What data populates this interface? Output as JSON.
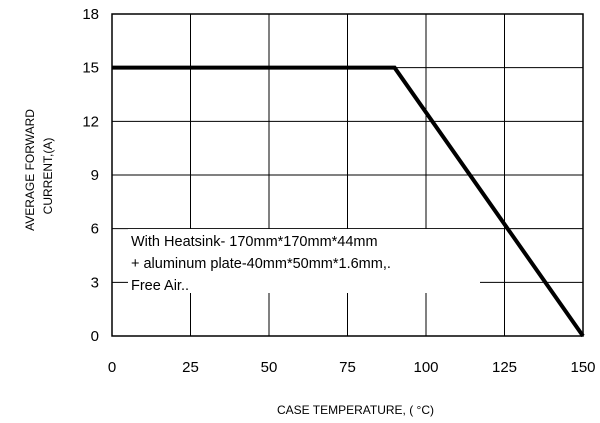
{
  "chart_data": {
    "type": "line",
    "xlabel": "CASE TEMPERATURE, ( °C)",
    "ylabel_lines": [
      "AVERAGE FORWARD",
      "CURRENT,(A)"
    ],
    "xlim": [
      0,
      150
    ],
    "ylim": [
      0,
      18
    ],
    "x_ticks": [
      0,
      25,
      50,
      75,
      100,
      125,
      150
    ],
    "y_ticks": [
      0,
      3,
      6,
      9,
      12,
      15,
      18
    ],
    "grid": true,
    "series": [
      {
        "x": [
          0,
          90,
          150
        ],
        "y": [
          15,
          15,
          0
        ]
      }
    ],
    "annotation_lines": [
      "With Heatsink- 170mm*170mm*44mm",
      "+ aluminum plate-40mm*50mm*1.6mm,.",
      "Free Air.."
    ],
    "colors": {
      "line": "#000000",
      "grid": "#000000",
      "background": "#ffffff"
    }
  }
}
